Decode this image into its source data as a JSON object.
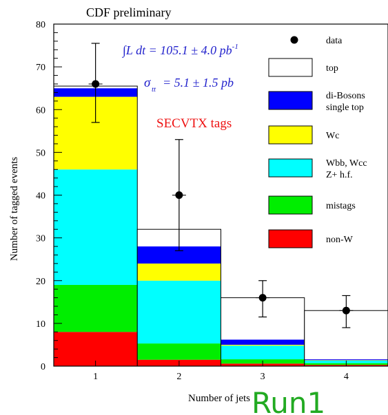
{
  "chart_data": {
    "type": "bar",
    "title": "CDF preliminary",
    "xlabel": "Number of jets",
    "ylabel": "Number of tagged events",
    "ylim": [
      0,
      80
    ],
    "yticks": [
      0,
      10,
      20,
      30,
      40,
      50,
      60,
      70,
      80
    ],
    "categories": [
      "1",
      "2",
      "3",
      "4"
    ],
    "stacked": true,
    "series": [
      {
        "name": "non-W",
        "color": "#ff0000",
        "values": [
          8.0,
          1.5,
          0.6,
          0.3
        ]
      },
      {
        "name": "mistags",
        "color": "#00ee00",
        "values": [
          11.0,
          3.8,
          1.0,
          0.4
        ]
      },
      {
        "name": "Wbb, Wcc\nZ+ h.f.",
        "color": "#00ffff",
        "values": [
          27.0,
          14.7,
          3.2,
          0.6
        ]
      },
      {
        "name": "Wc",
        "color": "#ffff00",
        "values": [
          17.0,
          4.0,
          0.2,
          0.1
        ]
      },
      {
        "name": "di-Bosons\nsingle top",
        "color": "#0000ff",
        "values": [
          2.0,
          4.0,
          1.2,
          0.2
        ]
      },
      {
        "name": "top",
        "color": "#ffffff",
        "values": [
          0.5,
          4.0,
          9.8,
          11.4
        ]
      }
    ],
    "data_points": {
      "name": "data",
      "values": [
        66,
        40,
        16,
        13
      ],
      "err_low": [
        9,
        13,
        4.5,
        4
      ],
      "err_high": [
        9.5,
        13,
        4,
        3.5
      ]
    },
    "annotations": {
      "luminosity": "∫L dt = 105.1 ± 4.0 pb",
      "luminosity_sup": "-1",
      "cross_section_symbol": "σ",
      "cross_section_sub": "tt",
      "cross_section_value": "= 5.1 ± 1.5 pb",
      "tag_label": "SECVTX tags",
      "watermark": "Run1"
    },
    "legend_position": "right"
  }
}
